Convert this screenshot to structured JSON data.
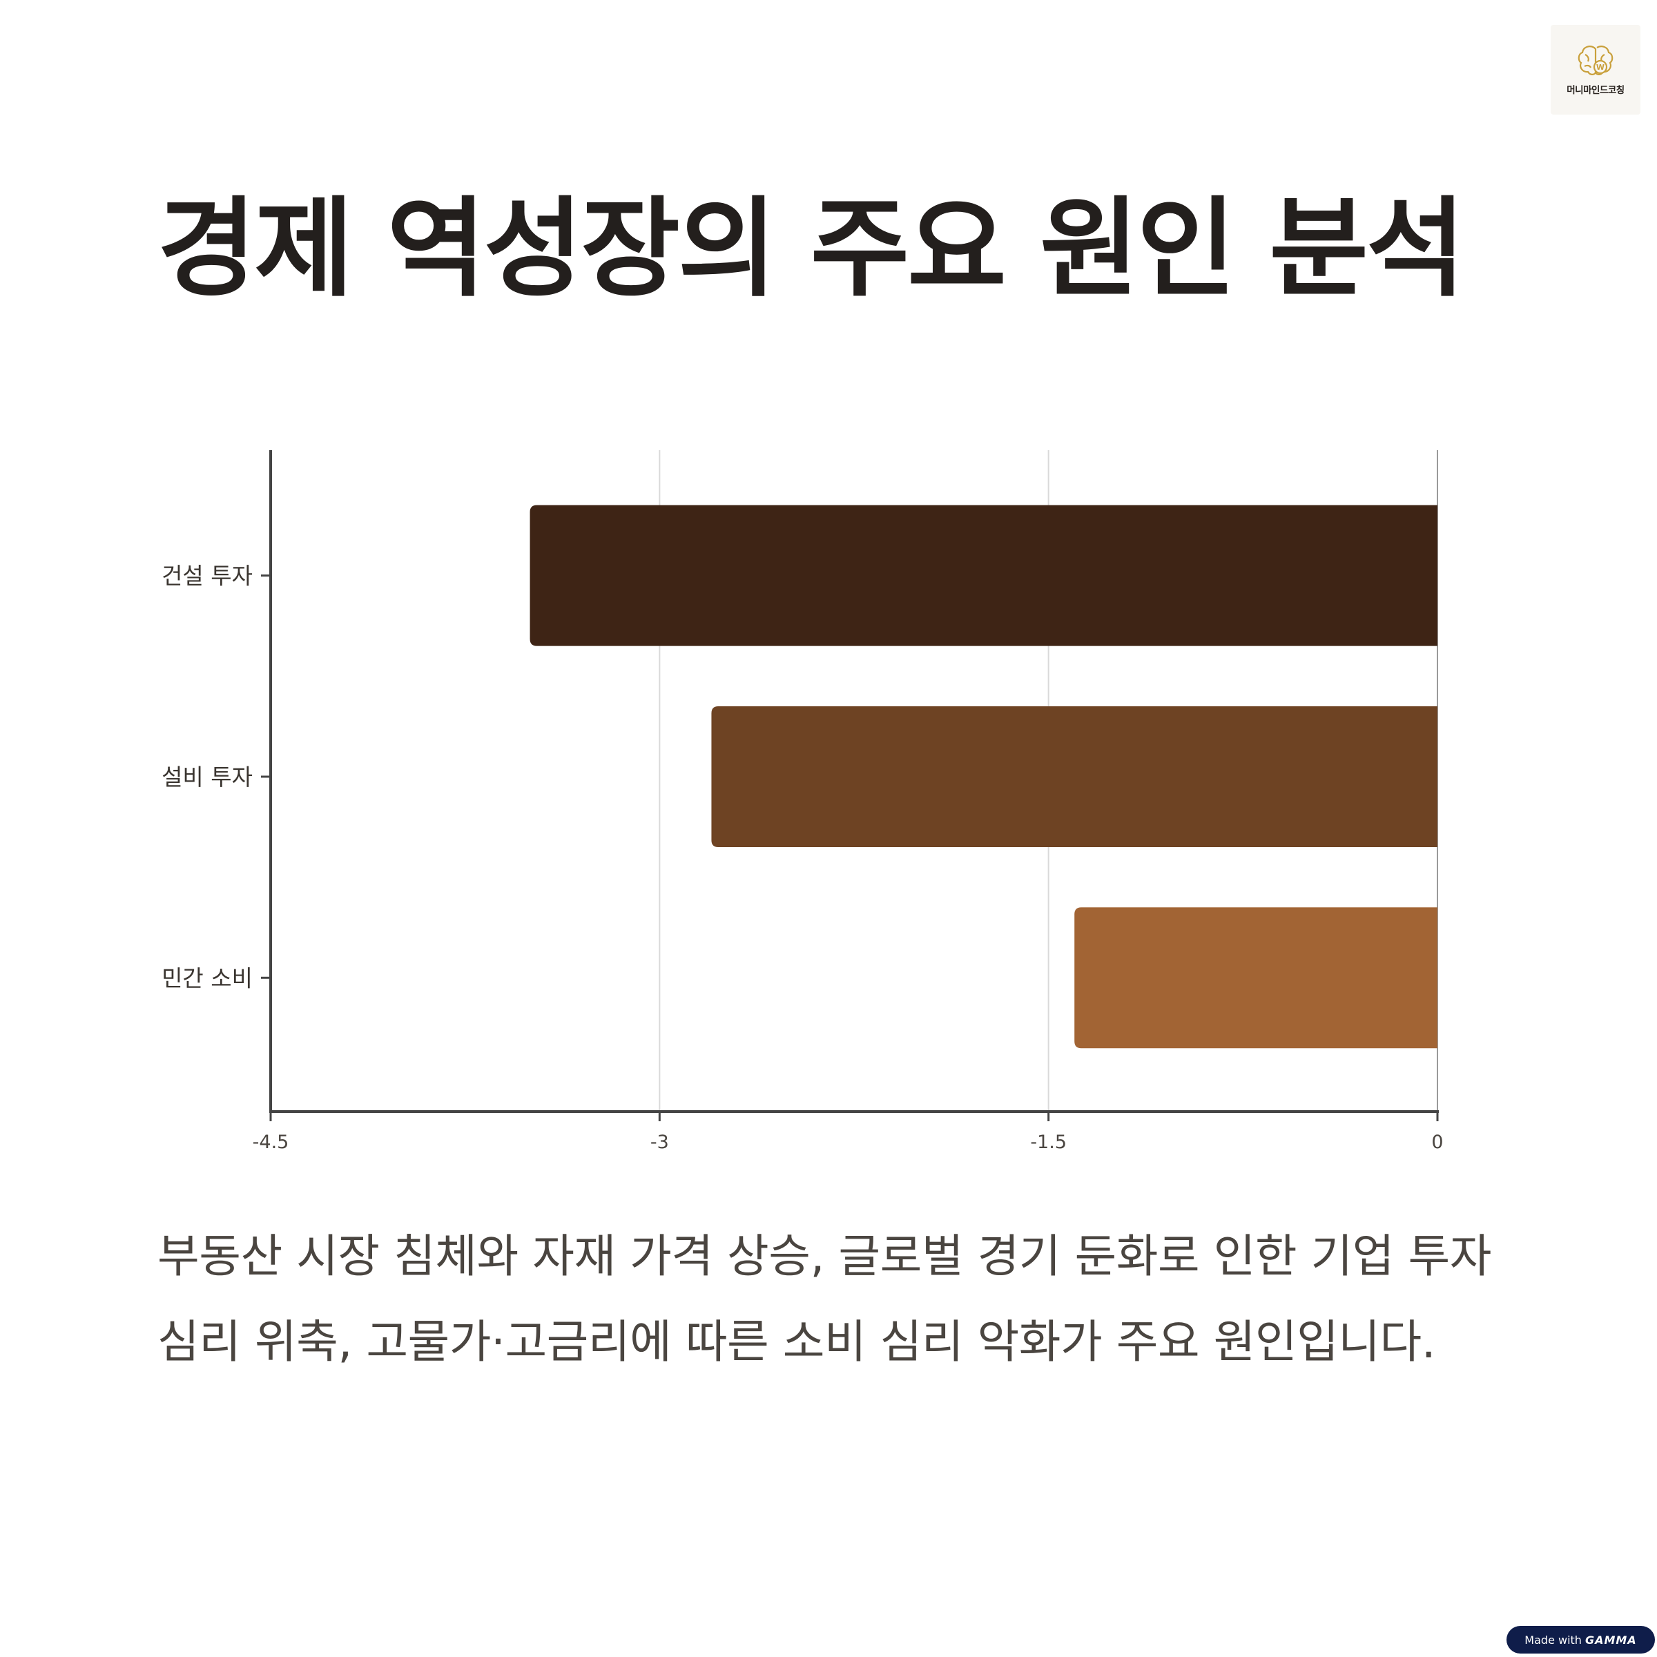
{
  "logo": {
    "text": "머니마인드코칭",
    "icon": "brain-w-icon",
    "color": "#c9a03c"
  },
  "title": "경제 역성장의 주요 원인 분석",
  "chart_data": {
    "type": "bar",
    "orientation": "horizontal",
    "categories": [
      "건설 투자",
      "설비 투자",
      "민간 소비"
    ],
    "values": [
      -3.5,
      -2.8,
      -1.4
    ],
    "colors": [
      "#3e2415",
      "#6e4323",
      "#a26434"
    ],
    "x_ticks": [
      "-4.5",
      "-3",
      "-1.5",
      "0"
    ],
    "xlim": [
      -4.5,
      0
    ],
    "grid": true,
    "title": "",
    "xlabel": "",
    "ylabel": ""
  },
  "description": "부동산 시장 침체와 자재 가격 상승, 글로벌 경기 둔화로 인한 기업 투자 심리 위축, 고물가·고금리에 따른 소비 심리 악화가 주요 원인입니다.",
  "badge": {
    "prefix": "Made with",
    "brand": "GAMMA"
  }
}
